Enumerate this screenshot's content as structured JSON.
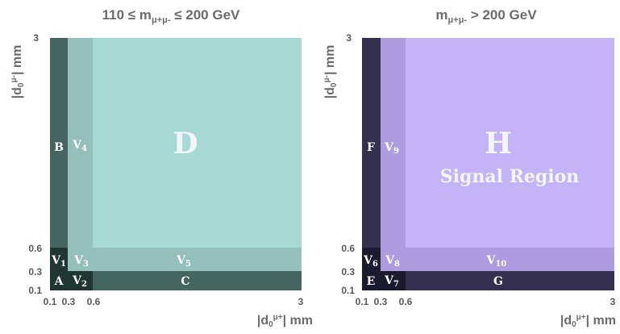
{
  "panels": [
    {
      "title_prefix": "110 ≤ m",
      "title_sub": "μ+μ-",
      "title_suffix": " ≤ 200 GeV",
      "colors": {
        "main": "#a6d9d3",
        "band_mid": "#94bfba",
        "band_dark": "#456560",
        "corner_dark": "#1f3633"
      },
      "regions": {
        "A": "A",
        "B": "B",
        "C": "C",
        "D": "D",
        "V1": "V",
        "V1_sub": "1",
        "V2": "V",
        "V2_sub": "2",
        "V3": "V",
        "V3_sub": "3",
        "V4": "V",
        "V4_sub": "4",
        "V5": "V",
        "V5_sub": "5"
      },
      "note": ""
    },
    {
      "title_prefix": "m",
      "title_sub": "μ+μ-",
      "title_suffix": " > 200 GeV",
      "colors": {
        "main": "#c5b3f7",
        "band_mid": "#ad9de0",
        "band_dark": "#35304f",
        "corner_dark": "#1c1a2e"
      },
      "regions": {
        "A": "E",
        "B": "F",
        "C": "G",
        "D": "H",
        "V1": "V",
        "V1_sub": "6",
        "V2": "V",
        "V2_sub": "7",
        "V3": "V",
        "V3_sub": "8",
        "V4": "V",
        "V4_sub": "9",
        "V5": "V",
        "V5_sub": "10"
      },
      "note": "Signal Region"
    }
  ],
  "axes": {
    "x_label_prefix": "|d",
    "x_label_zero": "0",
    "x_label_sup": "μ+",
    "x_label_suffix": "| mm",
    "y_label_prefix": "|d",
    "y_label_zero": "0",
    "y_label_sup": "μ-",
    "y_label_suffix": "| mm",
    "ticks": [
      "0.1",
      "0.3",
      "0.6",
      "3"
    ]
  }
}
